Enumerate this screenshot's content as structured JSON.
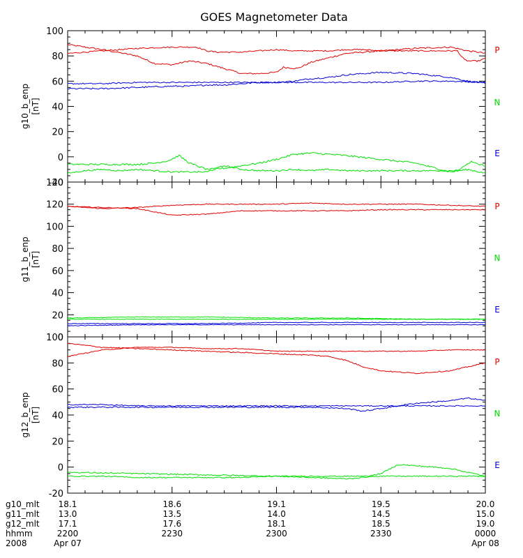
{
  "title": "GOES Magnetometer Data",
  "colors": {
    "P": "#e00000",
    "N": "#00e000",
    "E": "#0000d8",
    "axis": "#000000"
  },
  "chart_data": [
    {
      "type": "line",
      "ylabel": "g10_b_enp",
      "yunit": "[nT]",
      "ylim": [
        -20,
        100
      ],
      "yticks": [
        -20,
        0,
        20,
        40,
        60,
        80,
        100
      ],
      "xlim": [
        0,
        120
      ],
      "components": [
        {
          "label": "P",
          "color": "#e00000"
        },
        {
          "label": "N",
          "color": "#00e000"
        },
        {
          "label": "E",
          "color": "#0000d8"
        }
      ],
      "series": [
        {
          "color": "#e00000",
          "noise": 0.6,
          "x": [
            0,
            10,
            20,
            25,
            30,
            35,
            40,
            45,
            50,
            55,
            60,
            62,
            66,
            70,
            80,
            100,
            110,
            115,
            118,
            120
          ],
          "y": [
            89,
            85,
            80,
            74,
            73,
            76,
            74,
            70,
            66,
            66,
            67,
            71,
            70,
            75,
            82,
            86,
            87,
            84,
            83,
            82
          ]
        },
        {
          "color": "#e00000",
          "noise": 0.5,
          "x": [
            0,
            10,
            20,
            30,
            37,
            39,
            40,
            43,
            45,
            50,
            55,
            60,
            65,
            75,
            80,
            85,
            90,
            95,
            105,
            112,
            113,
            114,
            115,
            118,
            119,
            120
          ],
          "y": [
            82,
            84,
            86,
            87,
            87,
            85,
            84,
            83,
            83,
            83,
            84,
            85,
            84,
            84,
            85,
            85,
            84,
            84,
            84,
            84,
            80,
            77,
            76,
            76,
            77,
            78
          ]
        },
        {
          "color": "#0000d8",
          "noise": 0.6,
          "x": [
            0,
            10,
            20,
            30,
            35,
            40,
            45,
            50,
            55,
            60,
            65,
            70,
            75,
            80,
            90,
            100,
            110,
            115,
            118,
            120
          ],
          "y": [
            54,
            54,
            55,
            56,
            56,
            57,
            57,
            58,
            59,
            59,
            60,
            62,
            63,
            65,
            67,
            66,
            63,
            60,
            59,
            58
          ]
        },
        {
          "color": "#0000d8",
          "noise": 0.5,
          "x": [
            0,
            5,
            10,
            20,
            30,
            40,
            50,
            60,
            70,
            80,
            90,
            100,
            110,
            120
          ],
          "y": [
            58,
            58,
            58,
            59,
            59,
            59,
            59,
            59,
            59,
            59,
            59,
            60,
            60,
            59
          ]
        },
        {
          "color": "#00e000",
          "noise": 0.7,
          "x": [
            0,
            10,
            20,
            25,
            29,
            32,
            35,
            40,
            45,
            50,
            55,
            60,
            65,
            70,
            80,
            90,
            100,
            110,
            115,
            120
          ],
          "y": [
            -6,
            -6,
            -6,
            -5,
            -3,
            1,
            -5,
            -10,
            -9,
            -7,
            -5,
            -2,
            2,
            3,
            1,
            -2,
            -5,
            -12,
            -10,
            -13
          ]
        },
        {
          "color": "#00e000",
          "noise": 0.6,
          "x": [
            0,
            5,
            10,
            15,
            20,
            25,
            30,
            35,
            40,
            45,
            50,
            55,
            60,
            65,
            70,
            75,
            80,
            90,
            100,
            110,
            113,
            114,
            116,
            118,
            120
          ],
          "y": [
            -13,
            -11,
            -10,
            -11,
            -10,
            -11,
            -12,
            -12,
            -12,
            -7,
            -10,
            -11,
            -11,
            -10,
            -11,
            -10,
            -11,
            -11,
            -11,
            -11,
            -10,
            -7,
            -4,
            -6,
            -7
          ]
        }
      ]
    },
    {
      "type": "line",
      "ylabel": "g11_b_enp",
      "yunit": "[nT]",
      "ylim": [
        0,
        140
      ],
      "yticks": [
        0,
        20,
        40,
        60,
        80,
        100,
        120,
        140
      ],
      "xlim": [
        0,
        120
      ],
      "components": [
        {
          "label": "P",
          "color": "#e00000"
        },
        {
          "label": "N",
          "color": "#00e000"
        },
        {
          "label": "E",
          "color": "#0000d8"
        }
      ],
      "series": [
        {
          "color": "#e00000",
          "noise": 0.4,
          "x": [
            0,
            5,
            10,
            20,
            30,
            40,
            50,
            60,
            70,
            80,
            90,
            100,
            110,
            120
          ],
          "y": [
            118,
            117,
            116,
            117,
            119,
            120,
            120,
            120,
            121,
            120,
            120,
            120,
            119,
            118
          ]
        },
        {
          "color": "#e00000",
          "noise": 0.4,
          "x": [
            0,
            10,
            20,
            30,
            40,
            50,
            60,
            70,
            80,
            90,
            100,
            110,
            120
          ],
          "y": [
            118,
            117,
            116,
            110,
            111,
            114,
            114,
            114,
            114,
            115,
            115,
            115,
            115
          ]
        },
        {
          "color": "#00e000",
          "noise": 0.3,
          "x": [
            0,
            20,
            40,
            60,
            80,
            100,
            120
          ],
          "y": [
            17,
            18,
            18,
            17,
            17,
            16,
            16
          ]
        },
        {
          "color": "#00e000",
          "noise": 0.3,
          "x": [
            0,
            20,
            40,
            60,
            80,
            100,
            120
          ],
          "y": [
            16,
            16,
            16,
            16,
            16,
            16,
            16
          ]
        },
        {
          "color": "#0000d8",
          "noise": 0.3,
          "x": [
            0,
            20,
            40,
            60,
            80,
            100,
            120
          ],
          "y": [
            10,
            11,
            11,
            11,
            11,
            11,
            11
          ]
        },
        {
          "color": "#0000d8",
          "noise": 0.3,
          "x": [
            0,
            20,
            40,
            60,
            80,
            100,
            120
          ],
          "y": [
            12,
            12,
            12,
            13,
            13,
            13,
            13
          ]
        }
      ]
    },
    {
      "type": "line",
      "ylabel": "g12_b_enp",
      "yunit": "[nT]",
      "ylim": [
        -20,
        100
      ],
      "yticks": [
        -20,
        0,
        20,
        40,
        60,
        80,
        100
      ],
      "xlim": [
        0,
        120
      ],
      "components": [
        {
          "label": "P",
          "color": "#e00000"
        },
        {
          "label": "N",
          "color": "#00e000"
        },
        {
          "label": "E",
          "color": "#0000d8"
        }
      ],
      "series": [
        {
          "color": "#e00000",
          "noise": 0.4,
          "x": [
            0,
            10,
            20,
            30,
            40,
            50,
            60,
            70,
            75,
            80,
            85,
            90,
            95,
            100,
            105,
            110,
            115,
            120
          ],
          "y": [
            95,
            92,
            91,
            90,
            89,
            88,
            87,
            86,
            85,
            82,
            77,
            74,
            73,
            72,
            73,
            74,
            77,
            80
          ]
        },
        {
          "color": "#e00000",
          "noise": 0.3,
          "x": [
            0,
            10,
            20,
            30,
            40,
            50,
            60,
            70,
            80,
            90,
            100,
            110,
            120
          ],
          "y": [
            85,
            90,
            92,
            92,
            91,
            91,
            89,
            89,
            89,
            89,
            89,
            90,
            90
          ]
        },
        {
          "color": "#0000d8",
          "noise": 0.5,
          "x": [
            0,
            20,
            40,
            60,
            70,
            80,
            85,
            90,
            95,
            100,
            110,
            115,
            120
          ],
          "y": [
            46,
            46,
            46,
            46,
            46,
            45,
            43,
            45,
            47,
            49,
            51,
            53,
            51
          ]
        },
        {
          "color": "#0000d8",
          "noise": 0.4,
          "x": [
            0,
            10,
            20,
            30,
            40,
            50,
            60,
            70,
            80,
            90,
            100,
            110,
            120
          ],
          "y": [
            48,
            48,
            47,
            47,
            47,
            47,
            47,
            47,
            47,
            47,
            47,
            47,
            47
          ]
        },
        {
          "color": "#00e000",
          "noise": 0.5,
          "x": [
            0,
            20,
            40,
            60,
            70,
            80,
            85,
            90,
            95,
            100,
            110,
            120
          ],
          "y": [
            -4,
            -5,
            -6,
            -7,
            -8,
            -9,
            -8,
            -5,
            2,
            1,
            -1,
            -7
          ]
        },
        {
          "color": "#00e000",
          "noise": 0.4,
          "x": [
            0,
            10,
            20,
            30,
            40,
            50,
            60,
            70,
            80,
            90,
            100,
            110,
            120
          ],
          "y": [
            -7,
            -7,
            -8,
            -8,
            -8,
            -8,
            -7,
            -7,
            -7,
            -7,
            -7,
            -7,
            -7
          ]
        }
      ]
    }
  ],
  "footer": {
    "rows": [
      {
        "label": "g10_mlt",
        "values": [
          "18.1",
          "18.6",
          "19.1",
          "19.5",
          "20.0"
        ]
      },
      {
        "label": "g11_mlt",
        "values": [
          "13.0",
          "13.5",
          "14.0",
          "14.5",
          "15.0"
        ]
      },
      {
        "label": "g12_mlt",
        "values": [
          "17.1",
          "17.6",
          "18.1",
          "18.5",
          "19.0"
        ]
      },
      {
        "label": "hhmm",
        "values": [
          "2200",
          "2230",
          "2300",
          "2330",
          "0000"
        ]
      },
      {
        "label": "2008",
        "values": [
          "Apr 07",
          "",
          "",
          "",
          "Apr 08"
        ]
      }
    ],
    "major_x": [
      0,
      30,
      60,
      90,
      120
    ]
  }
}
